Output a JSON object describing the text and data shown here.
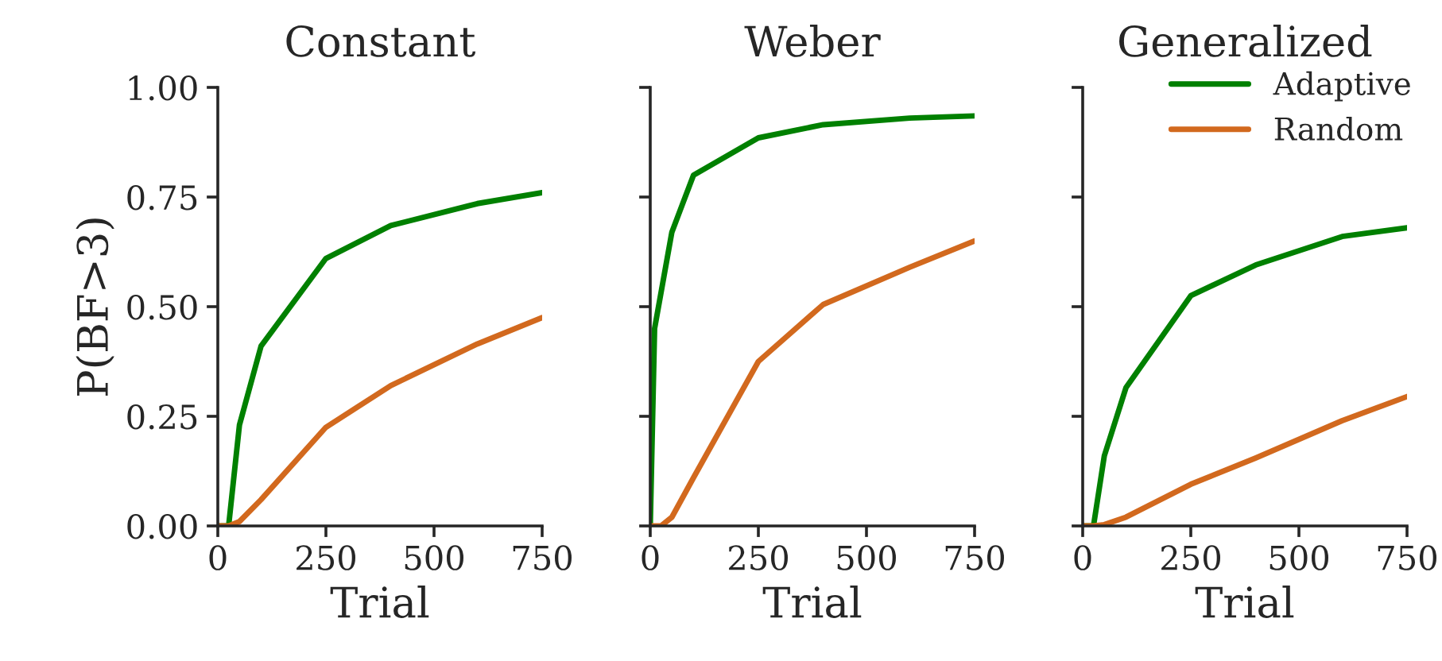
{
  "chart_data": [
    {
      "type": "line",
      "title": "Constant",
      "xlabel": "Trial",
      "ylabel": "P(BF>3)",
      "xlim": [
        0,
        750
      ],
      "xticks": [
        0,
        250,
        500,
        750
      ],
      "ylim": [
        0,
        1
      ],
      "yticks": [
        {
          "value": 0,
          "label": "0.00"
        },
        {
          "value": 0.25,
          "label": "0.25"
        },
        {
          "value": 0.5,
          "label": "0.50"
        },
        {
          "value": 0.75,
          "label": "0.75"
        },
        {
          "value": 1,
          "label": "1.00"
        }
      ],
      "series": [
        {
          "color": "#008000",
          "x": [
            0,
            25,
            50,
            100,
            250,
            400,
            600,
            750
          ],
          "values": [
            0,
            0,
            0.23,
            0.41,
            0.61,
            0.685,
            0.735,
            0.76
          ]
        },
        {
          "color": "#d2691e",
          "x": [
            0,
            25,
            50,
            100,
            250,
            400,
            600,
            750
          ],
          "values": [
            0,
            0,
            0.01,
            0.06,
            0.225,
            0.32,
            0.415,
            0.475
          ]
        }
      ]
    },
    {
      "type": "line",
      "title": "Weber",
      "xlabel": "Trial",
      "xlim": [
        0,
        750
      ],
      "xticks": [
        0,
        250,
        500,
        750
      ],
      "ylim": [
        0,
        1
      ],
      "yticks": [
        {
          "value": 0,
          "label": null
        },
        {
          "value": 0.25,
          "label": null
        },
        {
          "value": 0.5,
          "label": null
        },
        {
          "value": 0.75,
          "label": null
        },
        {
          "value": 1,
          "label": null
        }
      ],
      "tick_labels": "x",
      "series": [
        {
          "color": "#008000",
          "x": [
            0,
            10,
            50,
            100,
            250,
            400,
            600,
            750
          ],
          "values": [
            0,
            0.45,
            0.67,
            0.8,
            0.885,
            0.915,
            0.93,
            0.935
          ]
        },
        {
          "color": "#d2691e",
          "x": [
            0,
            25,
            50,
            100,
            250,
            400,
            600,
            750
          ],
          "values": [
            0,
            0,
            0.02,
            0.11,
            0.375,
            0.505,
            0.59,
            0.65
          ]
        }
      ]
    },
    {
      "type": "line",
      "title": "Generalized",
      "xlabel": "Trial",
      "xlim": [
        0,
        750
      ],
      "xticks": [
        0,
        250,
        500,
        750
      ],
      "ylim": [
        0,
        1
      ],
      "yticks": [
        {
          "value": 0,
          "label": null
        },
        {
          "value": 0.25,
          "label": null
        },
        {
          "value": 0.5,
          "label": null
        },
        {
          "value": 0.75,
          "label": null
        },
        {
          "value": 1,
          "label": null
        }
      ],
      "tick_labels": "x",
      "legend": "top right",
      "series": [
        {
          "name": "Adaptive",
          "color": "#008000",
          "x": [
            0,
            25,
            50,
            100,
            250,
            400,
            600,
            750
          ],
          "values": [
            0,
            0,
            0.16,
            0.315,
            0.525,
            0.595,
            0.66,
            0.68
          ]
        },
        {
          "name": "Random",
          "color": "#d2691e",
          "x": [
            0,
            25,
            50,
            100,
            250,
            400,
            600,
            750
          ],
          "values": [
            0,
            0,
            0.003,
            0.02,
            0.095,
            0.155,
            0.24,
            0.295
          ]
        }
      ]
    }
  ]
}
